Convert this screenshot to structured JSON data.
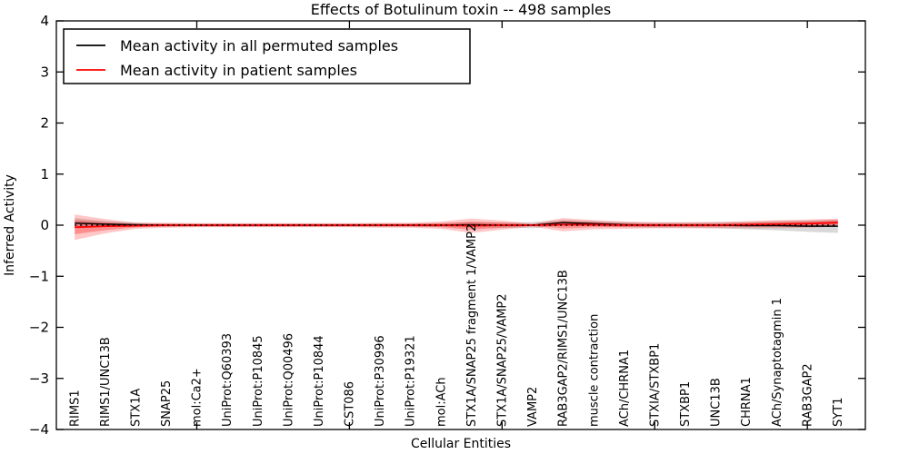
{
  "chart_data": {
    "type": "line",
    "title": "Effects of Botulinum toxin -- 498 samples",
    "xlabel": "Cellular Entities",
    "ylabel": "Inferred Activity",
    "ylim": [
      -4,
      4
    ],
    "xlim": [
      0.4,
      26.9
    ],
    "yticks": [
      -4,
      -3,
      -2,
      -1,
      0,
      1,
      2,
      3,
      4
    ],
    "ytick_labels": [
      "−4",
      "−3",
      "−2",
      "−1",
      "0",
      "1",
      "2",
      "3",
      "4"
    ],
    "xticks": [
      5,
      10,
      15,
      20,
      25
    ],
    "grid": false,
    "legend_position": "upper left",
    "categories": [
      "RIMS1",
      "RIMS1/UNC13B",
      "STX1A",
      "SNAP25",
      "mol:Ca2+",
      "UniProt:Q60393",
      "UniProt:P10845",
      "UniProt:Q00496",
      "UniProt:P10844",
      "CST086",
      "UniProt:P30996",
      "UniProt:P19321",
      "mol:ACh",
      "STX1A/SNAP25 fragment 1/VAMP2",
      "STX1A/SNAP25/VAMP2",
      "VAMP2",
      "RAB3GAP2/RIMS1/UNC13B",
      "muscle contraction",
      "ACh/CHRNA1",
      "STXIA/STXBP1",
      "STXBP1",
      "UNC13B",
      "CHRNA1",
      "ACh/Synaptotagmin 1",
      "RAB3GAP2",
      "SYT1"
    ],
    "series": [
      {
        "name": "Mean activity in all permuted samples",
        "color": "#000000",
        "values": [
          0.04,
          0.02,
          0.01,
          0.0,
          0.0,
          0.0,
          0.0,
          0.0,
          0.0,
          0.0,
          0.0,
          0.0,
          0.0,
          0.01,
          0.0,
          0.0,
          0.05,
          0.03,
          0.01,
          0.0,
          0.0,
          0.0,
          -0.01,
          -0.01,
          -0.02,
          -0.02
        ],
        "std": [
          0.1,
          0.06,
          0.04,
          0.03,
          0.03,
          0.03,
          0.03,
          0.03,
          0.03,
          0.03,
          0.03,
          0.03,
          0.04,
          0.05,
          0.05,
          0.06,
          0.05,
          0.05,
          0.05,
          0.05,
          0.05,
          0.06,
          0.07,
          0.09,
          0.11,
          0.13
        ],
        "band_color": "rgba(120,120,120,0.28)"
      },
      {
        "name": "Mean activity in patient samples",
        "color": "#ff0000",
        "values": [
          -0.04,
          -0.02,
          -0.01,
          0.0,
          0.0,
          0.0,
          0.0,
          0.0,
          0.0,
          0.0,
          0.0,
          0.0,
          0.0,
          -0.01,
          0.0,
          0.0,
          0.01,
          0.01,
          0.0,
          0.0,
          0.0,
          0.0,
          0.01,
          0.02,
          0.03,
          0.05
        ],
        "std": [
          0.25,
          0.14,
          0.06,
          0.05,
          0.04,
          0.04,
          0.04,
          0.04,
          0.04,
          0.04,
          0.05,
          0.05,
          0.07,
          0.14,
          0.09,
          0.03,
          0.13,
          0.09,
          0.07,
          0.06,
          0.06,
          0.06,
          0.07,
          0.08,
          0.08,
          0.08
        ],
        "band_color": "rgba(255,0,0,0.22)",
        "inner_band_color": "rgba(255,0,0,0.28)"
      }
    ],
    "zero_line": {
      "value": 0,
      "style": "dotted",
      "color": "#000000"
    }
  },
  "colors": {
    "axis": "#000000",
    "background": "#ffffff"
  }
}
